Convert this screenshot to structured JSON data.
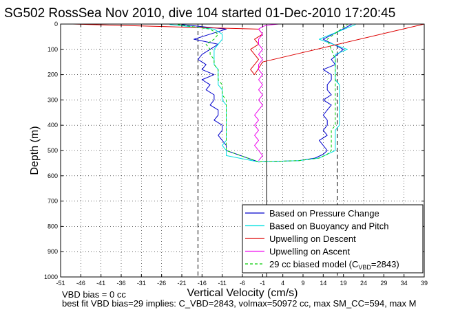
{
  "chart_data": {
    "type": "line",
    "title": "SG502 RossSea Nov 2010, dive 104 started 01-Dec-2010 17:20:45",
    "xlabel": "Vertical Velocity (cm/s)",
    "ylabel": "Depth (m)",
    "xlim": [
      -51,
      39
    ],
    "ylim": [
      1000,
      0
    ],
    "y_reversed": true,
    "grid": true,
    "x_ticks": [
      -51,
      -46,
      -41,
      -36,
      -31,
      -26,
      -21,
      -16,
      -11,
      -6,
      -1,
      4,
      9,
      14,
      19,
      24,
      29,
      34,
      39
    ],
    "x_tick_labels": [
      "-51",
      "-46",
      "-41",
      "-36",
      "-31",
      "-26",
      "-21",
      "-16",
      "-11",
      "-6",
      "-1",
      "4",
      "9",
      "14",
      "19",
      "24",
      "29",
      "34",
      "39"
    ],
    "y_ticks": [
      0,
      100,
      200,
      300,
      400,
      500,
      600,
      700,
      800,
      900,
      1000
    ],
    "y_tick_labels": [
      "0",
      "100",
      "200",
      "300",
      "400",
      "500",
      "600",
      "700",
      "800",
      "900",
      "1000"
    ],
    "legend_position": "bottom-right",
    "vertical_lines": [
      {
        "x": -17,
        "style": "dashed",
        "color": "#000000"
      },
      {
        "x": 17.5,
        "style": "dashed",
        "color": "#000000"
      },
      {
        "x": 0,
        "style": "solid",
        "color": "#000000"
      }
    ],
    "series": [
      {
        "name": "Based on Pressure Change",
        "color": "#0000cc",
        "dash": "none",
        "x": [
          -21,
          -10,
          -14,
          -18,
          -12,
          -14,
          -16,
          -17,
          -15,
          -16,
          -13,
          -16,
          -14,
          -15,
          -13,
          -13,
          -14,
          -12,
          -12,
          -13,
          -11,
          -11,
          -12,
          -11,
          -10,
          -10,
          -2,
          8,
          12,
          14,
          15,
          14,
          13,
          15,
          14,
          15,
          15,
          14,
          15,
          16,
          14,
          16,
          15,
          15,
          16,
          16,
          14,
          17,
          16,
          19,
          14,
          21
        ],
        "y": [
          2,
          20,
          40,
          60,
          80,
          100,
          120,
          140,
          160,
          180,
          200,
          220,
          240,
          260,
          280,
          300,
          320,
          340,
          360,
          380,
          400,
          420,
          440,
          460,
          480,
          500,
          545,
          540,
          530,
          515,
          500,
          480,
          460,
          440,
          420,
          400,
          380,
          360,
          340,
          320,
          300,
          280,
          260,
          240,
          220,
          200,
          180,
          160,
          140,
          100,
          60,
          2
        ]
      },
      {
        "name": "Based on Buoyancy and Pitch",
        "color": "#00e0e0",
        "dash": "none",
        "x": [
          -24,
          -13,
          -11,
          -11,
          -12,
          -13,
          -13,
          -13,
          -13,
          -12,
          -12,
          -12,
          -12,
          -11,
          -11,
          -11,
          -10,
          -10,
          -10,
          -10,
          -10,
          -10,
          -10,
          -10,
          -11,
          -10,
          -10,
          -2,
          8,
          13,
          15,
          17,
          17,
          17,
          17,
          17,
          18,
          18,
          18,
          18,
          18,
          18,
          18,
          18,
          18,
          17,
          17,
          17,
          17,
          17,
          17,
          20,
          13,
          22
        ],
        "y": [
          2,
          20,
          40,
          60,
          80,
          100,
          120,
          140,
          160,
          180,
          200,
          220,
          240,
          260,
          280,
          300,
          320,
          340,
          360,
          380,
          400,
          420,
          440,
          460,
          480,
          500,
          520,
          545,
          540,
          530,
          515,
          500,
          480,
          460,
          440,
          420,
          400,
          380,
          360,
          340,
          320,
          300,
          280,
          260,
          240,
          220,
          200,
          180,
          160,
          140,
          120,
          100,
          60,
          2
        ]
      },
      {
        "name": "Upwelling on Descent",
        "color": "#dd0000",
        "dash": "none",
        "x": [
          -48,
          -2,
          -1,
          -3,
          -2,
          -4,
          -3,
          -2,
          -3,
          -4,
          -3,
          -1,
          39
        ],
        "y": [
          0,
          20,
          40,
          60,
          80,
          100,
          120,
          140,
          160,
          180,
          200,
          150,
          0
        ]
      },
      {
        "name": "Upwelling on Ascent",
        "color": "#ee00ee",
        "dash": "none",
        "x": [
          -2,
          -1,
          -2,
          -3,
          -2,
          -3,
          -2,
          -3,
          -2,
          -3,
          -2,
          -1,
          -2,
          -1,
          -2,
          -1,
          -2,
          -1,
          -2,
          -2,
          -1,
          -2,
          -1,
          -2,
          -2,
          -1,
          -2,
          -1,
          0,
          3
        ],
        "y": [
          540,
          520,
          500,
          480,
          460,
          440,
          420,
          400,
          380,
          360,
          340,
          320,
          300,
          280,
          260,
          240,
          220,
          200,
          180,
          160,
          140,
          120,
          100,
          80,
          60,
          40,
          20,
          10,
          5,
          0
        ]
      },
      {
        "name": "29 cc biased model",
        "name_sub": "VBD",
        "name_prefix": "29 cc biased model (C",
        "name_suffix": "=2843)",
        "color": "#00cc00",
        "dash": "4,3",
        "x": [
          -22,
          -14,
          -12,
          -13,
          -15,
          -14,
          -14,
          -13,
          -13,
          -12,
          -12,
          -12,
          -11,
          -11,
          -11,
          -10,
          -10,
          -10,
          -10,
          -10,
          -10,
          -10,
          -10,
          -10,
          -10,
          -2,
          8,
          13,
          15,
          16,
          16,
          16,
          16,
          16,
          17,
          17,
          17,
          17,
          17,
          17,
          17,
          17,
          17,
          17,
          17,
          17,
          17,
          15,
          20
        ],
        "y": [
          2,
          20,
          40,
          60,
          80,
          100,
          120,
          140,
          160,
          180,
          200,
          220,
          240,
          260,
          280,
          300,
          320,
          340,
          360,
          380,
          400,
          420,
          440,
          460,
          500,
          545,
          540,
          530,
          515,
          500,
          480,
          460,
          440,
          420,
          400,
          380,
          360,
          340,
          320,
          300,
          280,
          260,
          240,
          220,
          200,
          180,
          140,
          60,
          2
        ]
      }
    ],
    "legend": [
      {
        "label": "Based on Pressure Change",
        "color": "#0000cc",
        "dash": "none"
      },
      {
        "label": "Based on Buoyancy and Pitch",
        "color": "#00e0e0",
        "dash": "none"
      },
      {
        "label": "Upwelling on Descent",
        "color": "#dd0000",
        "dash": "none"
      },
      {
        "label": "Upwelling on Ascent",
        "color": "#ee00ee",
        "dash": "none"
      },
      {
        "label_prefix": "29 cc biased model (C",
        "label_sub": "VBD",
        "label_suffix": "=2843)",
        "color": "#00cc00",
        "dash": "4,3"
      }
    ],
    "annotations": [
      "VBD bias = 0 cc",
      "best fit VBD bias=29 implies: C_VBD=2843, volmax=50972 cc, max SM_CC=594, max M"
    ]
  }
}
